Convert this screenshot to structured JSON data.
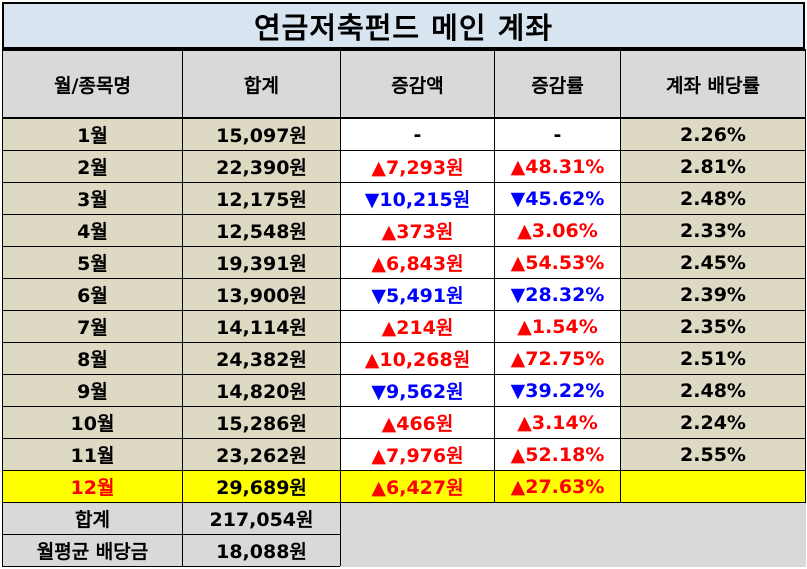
{
  "title": "연금저축펀드 메인 계좌",
  "headers": [
    "월/종목명",
    "합계",
    "증감액",
    "증감률",
    "계좌 배당률"
  ],
  "rows": [
    {
      "month": "1월",
      "total": "15,097원",
      "change": "-",
      "rate": "-",
      "yield": "2.26%",
      "dir": "neutral"
    },
    {
      "month": "2월",
      "total": "22,390원",
      "change": "▲7,293원",
      "rate": "▲48.31%",
      "yield": "2.81%",
      "dir": "up"
    },
    {
      "month": "3월",
      "total": "12,175원",
      "change": "▼10,215원",
      "rate": "▼45.62%",
      "yield": "2.48%",
      "dir": "down"
    },
    {
      "month": "4월",
      "total": "12,548원",
      "change": "▲373원",
      "rate": "▲3.06%",
      "yield": "2.33%",
      "dir": "up"
    },
    {
      "month": "5월",
      "total": "19,391원",
      "change": "▲6,843원",
      "rate": "▲54.53%",
      "yield": "2.45%",
      "dir": "up"
    },
    {
      "month": "6월",
      "total": "13,900원",
      "change": "▼5,491원",
      "rate": "▼28.32%",
      "yield": "2.39%",
      "dir": "down"
    },
    {
      "month": "7월",
      "total": "14,114원",
      "change": "▲214원",
      "rate": "▲1.54%",
      "yield": "2.35%",
      "dir": "up"
    },
    {
      "month": "8월",
      "total": "24,382원",
      "change": "▲10,268원",
      "rate": "▲72.75%",
      "yield": "2.51%",
      "dir": "up"
    },
    {
      "month": "9월",
      "total": "14,820원",
      "change": "▼9,562원",
      "rate": "▼39.22%",
      "yield": "2.48%",
      "dir": "down"
    },
    {
      "month": "10월",
      "total": "15,286원",
      "change": "▲466원",
      "rate": "▲3.14%",
      "yield": "2.24%",
      "dir": "up"
    },
    {
      "month": "11월",
      "total": "23,262원",
      "change": "▲7,976원",
      "rate": "▲52.18%",
      "yield": "2.55%",
      "dir": "up"
    },
    {
      "month": "12월",
      "total": "29,689원",
      "change": "▲6,427원",
      "rate": "▲27.63%",
      "yield": "",
      "dir": "up",
      "highlight": true
    }
  ],
  "footer": [
    {
      "label": "합계",
      "value": "217,054원"
    },
    {
      "label": "월평균 배당금",
      "value": "18,088원"
    }
  ],
  "colors": {
    "title_bg": "#d8e4f0",
    "row_bg": "#ddd9c3",
    "highlight_bg": "#ffff00",
    "up": "#ff0000",
    "down": "#0000ff"
  }
}
